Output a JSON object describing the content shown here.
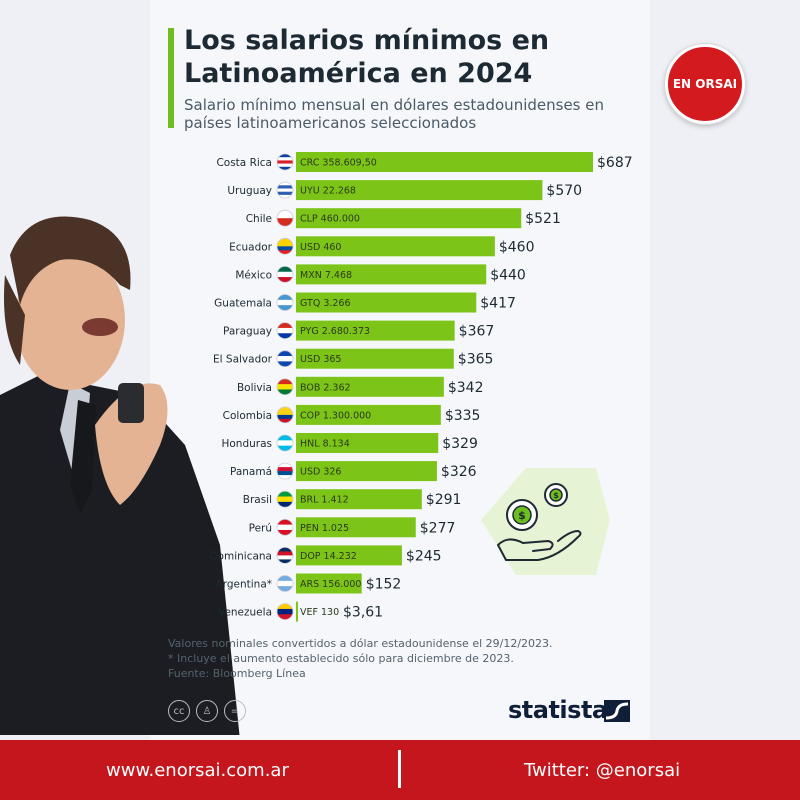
{
  "header": {
    "title": "Los salarios mínimos en Latinoamérica en 2024",
    "subtitle": "Salario mínimo mensual en dólares estadounidenses en países latinoamericanos seleccionados"
  },
  "badge": {
    "text": "EN ORSAI",
    "color": "#d31a1f"
  },
  "chart_data": {
    "type": "bar",
    "orientation": "horizontal",
    "categories": [
      "Costa Rica",
      "Uruguay",
      "Chile",
      "Ecuador",
      "México",
      "Guatemala",
      "Paraguay",
      "El Salvador",
      "Bolivia",
      "Colombia",
      "Honduras",
      "Panamá",
      "Brasil",
      "Perú",
      "Dominicana",
      "Argentina*",
      "Venezuela"
    ],
    "series": [
      {
        "values": [
          687,
          570,
          521,
          460,
          440,
          417,
          367,
          365,
          342,
          335,
          329,
          326,
          291,
          277,
          245,
          152,
          3.61
        ]
      }
    ],
    "value_labels": [
      "$687",
      "$570",
      "$521",
      "$460",
      "$440",
      "$417",
      "$367",
      "$365",
      "$342",
      "$335",
      "$329",
      "$326",
      "$291",
      "$277",
      "$245",
      "$152",
      "$3,61"
    ],
    "local_labels": [
      "CRC 358.609,50",
      "UYU 22.268",
      "CLP 460.000",
      "USD 460",
      "MXN 7.468",
      "GTQ 3.266",
      "PYG 2.680.373",
      "USD 365",
      "BOB 2.362",
      "COP 1.300.000",
      "HNL 8.134",
      "USD 326",
      "BRL 1.412",
      "PEN 1.025",
      "DOP 14.232",
      "ARS 156.000",
      "VEF 130"
    ],
    "flags": [
      [
        "#0b3fa8",
        "#ffffff",
        "#d81e2a",
        "#ffffff",
        "#0b3fa8"
      ],
      [
        "#ffffff",
        "#2f5fb3",
        "#ffffff",
        "#2f5fb3",
        "#ffffff"
      ],
      [
        "#ffffff",
        "#ffffff",
        "#d52b1e",
        "#d52b1e"
      ],
      [
        "#ffd100",
        "#ffd100",
        "#034ea2",
        "#ed1c24"
      ],
      [
        "#006847",
        "#ffffff",
        "#ce1126"
      ],
      [
        "#4997d0",
        "#ffffff",
        "#4997d0"
      ],
      [
        "#d52b1e",
        "#ffffff",
        "#0038a8"
      ],
      [
        "#0f47af",
        "#ffffff",
        "#0f47af"
      ],
      [
        "#d52b1e",
        "#f9e300",
        "#007934"
      ],
      [
        "#fcd116",
        "#fcd116",
        "#003893",
        "#ce1126"
      ],
      [
        "#00bce4",
        "#ffffff",
        "#00bce4"
      ],
      [
        "#ffffff",
        "#d21034",
        "#005293",
        "#ffffff"
      ],
      [
        "#009c3b",
        "#ffdf00",
        "#002776"
      ],
      [
        "#d91023",
        "#ffffff",
        "#d91023"
      ],
      [
        "#002d62",
        "#ce1126",
        "#ffffff",
        "#002d62"
      ],
      [
        "#74acdf",
        "#ffffff",
        "#74acdf"
      ],
      [
        "#ffcc00",
        "#00247d",
        "#cf142b"
      ]
    ],
    "bar_color": "#7cc418",
    "xlim": [
      0,
      687
    ]
  },
  "notes": [
    "Valores nominales convertidos a dólar estadounidense el 29/12/2023.",
    "* Incluye el aumento establecido sólo para diciembre de 2023.",
    "Fuente: Bloomberg Línea"
  ],
  "cc_icons": [
    "cc-icon",
    "person-icon",
    "equals-icon"
  ],
  "brand": {
    "name": "statista"
  },
  "footer": {
    "website": "www.enorsai.com.ar",
    "twitter": "Twitter: @enorsai",
    "color": "#c4161c"
  }
}
